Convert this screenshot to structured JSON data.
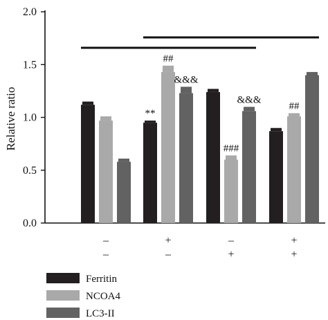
{
  "chart_data": {
    "type": "bar",
    "ylabel": "Relative ratio",
    "ylim": [
      0,
      2.0
    ],
    "yticks": [
      "0.0",
      "0.5",
      "1.0",
      "1.5",
      "2.0"
    ],
    "groups": 4,
    "condition_rows": [
      [
        "–",
        "+",
        "–",
        "+"
      ],
      [
        "–",
        "–",
        "+",
        "+"
      ]
    ],
    "series": [
      {
        "name": "Ferritin",
        "color": "#231f20",
        "values": [
          1.12,
          0.95,
          1.24,
          0.87
        ],
        "errors": [
          0.03,
          0.02,
          0.03,
          0.03
        ],
        "annotations": [
          "",
          "**",
          "",
          ""
        ]
      },
      {
        "name": "NCOA4",
        "color": "#a9a9a9",
        "values": [
          0.97,
          1.43,
          0.6,
          1.01
        ],
        "errors": [
          0.04,
          0.06,
          0.04,
          0.03
        ],
        "annotations": [
          "",
          "##",
          "###",
          "##"
        ]
      },
      {
        "name": "LC3-II",
        "color": "#626262",
        "values": [
          0.58,
          1.23,
          1.06,
          1.4
        ],
        "errors": [
          0.03,
          0.06,
          0.04,
          0.03
        ],
        "annotations": [
          "",
          "&&&",
          "&&&",
          ""
        ]
      }
    ],
    "comparison_lines": [
      {
        "from_group": 1,
        "to_group": 3
      },
      {
        "from_group": 2,
        "to_group": 4
      }
    ],
    "legend_position": "bottom-left",
    "grid": false
  }
}
